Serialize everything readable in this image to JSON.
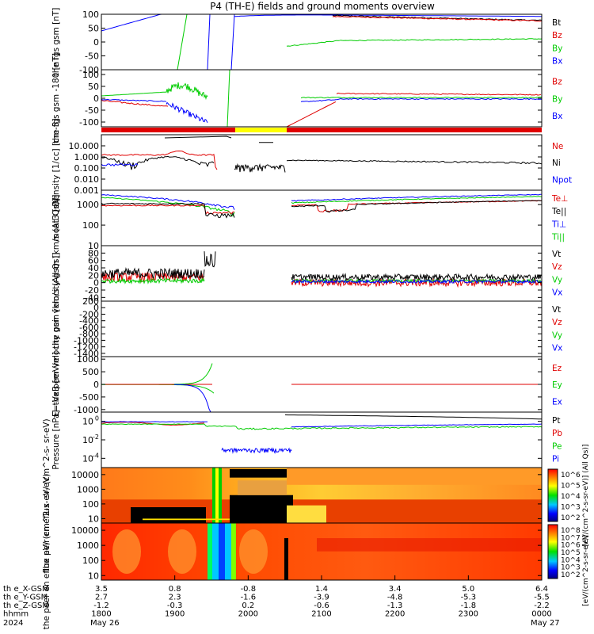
{
  "title": "P4 (TH-E) fields and ground moments overview",
  "colors": {
    "black": "#000000",
    "red": "#e00000",
    "green": "#00cc00",
    "blue": "#0000ff"
  },
  "colorbar": {
    "top_ticks": [
      "10^6",
      "10^5",
      "10^4",
      "10^3",
      "10^2"
    ],
    "bottom_ticks": [
      "10^8",
      "10^7",
      "10^6",
      "10^5",
      "10^4",
      "10^3",
      "10^2"
    ],
    "label_top": "[eV/(cm^2-s-sr-eV)] (All Qs)]",
    "label_bottom": "[eV/(cm^2-s-sr-eV)]"
  },
  "x_axis": {
    "rows": [
      {
        "label": "th e_X-GSM",
        "values": [
          "3.5",
          "0.8",
          "-0.8",
          "1.4",
          "3.4",
          "5.0",
          "6.4"
        ]
      },
      {
        "label": "th e_Y-GSM",
        "values": [
          "2.7",
          "2.3",
          "-1.6",
          "-3.9",
          "-4.8",
          "-5.3",
          "-5.5"
        ]
      },
      {
        "label": "th e_Z-GSM",
        "values": [
          "-1.2",
          "-0.3",
          "0.2",
          "-0.6",
          "-1.3",
          "-1.8",
          "-2.2"
        ]
      },
      {
        "label": "hhmm",
        "values": [
          "1800",
          "1900",
          "2000",
          "2100",
          "2200",
          "2300",
          "0000"
        ]
      }
    ],
    "year": "2024",
    "date_start": "May 26",
    "date_end": "May 27"
  },
  "chart_data": [
    {
      "type": "line",
      "ylabel": "the fgs gsm [nT]",
      "ylim": [
        -100,
        100
      ],
      "ticks": [
        "100",
        "50",
        "0",
        "-50",
        "-100"
      ],
      "series": [
        {
          "name": "Bt",
          "color": "#000000"
        },
        {
          "name": "Bz",
          "color": "#e00000"
        },
        {
          "name": "By",
          "color": "#00cc00"
        },
        {
          "name": "Bx",
          "color": "#0000ff"
        }
      ]
    },
    {
      "type": "line",
      "ylabel": "the fgs gsm -180 [nT]",
      "ylim": [
        -120,
        120
      ],
      "ticks": [
        "100",
        "50",
        "0",
        "-50",
        "-100"
      ],
      "series": [
        {
          "name": "Bz",
          "color": "#e00000"
        },
        {
          "name": "By",
          "color": "#00cc00"
        },
        {
          "name": "Bx",
          "color": "#0000ff"
        }
      ]
    },
    {
      "type": "line",
      "ylabel": "Density [1/cc] [cm-3]",
      "scale": "log",
      "ylim": [
        0.001,
        100
      ],
      "ticks": [
        "10.000",
        "1.000",
        "0.100",
        "0.010",
        "0.001"
      ],
      "series": [
        {
          "name": "Ne",
          "color": "#e00000"
        },
        {
          "name": "Ni",
          "color": "#000000"
        },
        {
          "name": "Npot",
          "color": "#0000ff"
        }
      ]
    },
    {
      "type": "line",
      "ylabel": "moat3 [eV]",
      "scale": "log",
      "ylim": [
        10,
        5000
      ],
      "ticks": [
        "1000",
        "100",
        "10"
      ],
      "series": [
        {
          "name": "Te⊥",
          "color": "#e00000"
        },
        {
          "name": "Te||",
          "color": "#000000"
        },
        {
          "name": "Ti⊥",
          "color": "#0000ff"
        },
        {
          "name": "Ti||",
          "color": "#00cc00"
        }
      ]
    },
    {
      "type": "line",
      "ylabel": "the peir velocity gsm [km/s (All Qs)]",
      "ylim": [
        -50,
        100
      ],
      "ticks": [
        "80",
        "60",
        "40",
        "20",
        "0",
        "-20",
        "-40"
      ],
      "series": [
        {
          "name": "Vt",
          "color": "#000000"
        },
        {
          "name": "Vz",
          "color": "#e00000"
        },
        {
          "name": "Vy",
          "color": "#00cc00"
        },
        {
          "name": "Vx",
          "color": "#0000ff"
        }
      ]
    },
    {
      "type": "line",
      "ylabel": "the peer velocity gsm [km/s (All Qs)]",
      "ylim": [
        -1500,
        200
      ],
      "ticks": [
        "200",
        "0",
        "-200",
        "-400",
        "-600",
        "-800",
        "-1000",
        "-1200",
        "-1400"
      ],
      "series": [
        {
          "name": "Vt",
          "color": "#000000"
        },
        {
          "name": "Vz",
          "color": "#e00000"
        },
        {
          "name": "Vy",
          "color": "#00cc00"
        },
        {
          "name": "Vx",
          "color": "#0000ff"
        }
      ]
    },
    {
      "type": "line",
      "ylabel": "E=-VxB [mV/m]",
      "ylim": [
        -1100,
        1100
      ],
      "ticks": [
        "1000",
        "500",
        "0",
        "-500",
        "-1000"
      ],
      "series": [
        {
          "name": "Ez",
          "color": "#e00000"
        },
        {
          "name": "Ey",
          "color": "#00cc00"
        },
        {
          "name": "Ex",
          "color": "#0000ff"
        }
      ]
    },
    {
      "type": "line",
      "ylabel": "Pressure [nPa]",
      "scale": "log",
      "ylim": [
        1e-05,
        10
      ],
      "ticks": [
        "10^0",
        "10^-2",
        "10^-4"
      ],
      "series": [
        {
          "name": "Pt",
          "color": "#000000"
        },
        {
          "name": "Pb",
          "color": "#e00000"
        },
        {
          "name": "Pe",
          "color": "#00cc00"
        },
        {
          "name": "Pi",
          "color": "#0000ff"
        }
      ]
    },
    {
      "type": "heatmap",
      "ylabel": "the peir en eflux eV/ (cm^2-s- sr-eV)",
      "scale": "log",
      "ylim": [
        5,
        30000
      ],
      "ticks": [
        "10000",
        "1000",
        "100",
        "10"
      ]
    },
    {
      "type": "heatmap",
      "ylabel": "the peer en eflux eV/ (cm^2-s- sr-eV)",
      "scale": "log",
      "ylim": [
        5,
        30000
      ],
      "ticks": [
        "10000",
        "1000",
        "100",
        "10"
      ]
    }
  ]
}
